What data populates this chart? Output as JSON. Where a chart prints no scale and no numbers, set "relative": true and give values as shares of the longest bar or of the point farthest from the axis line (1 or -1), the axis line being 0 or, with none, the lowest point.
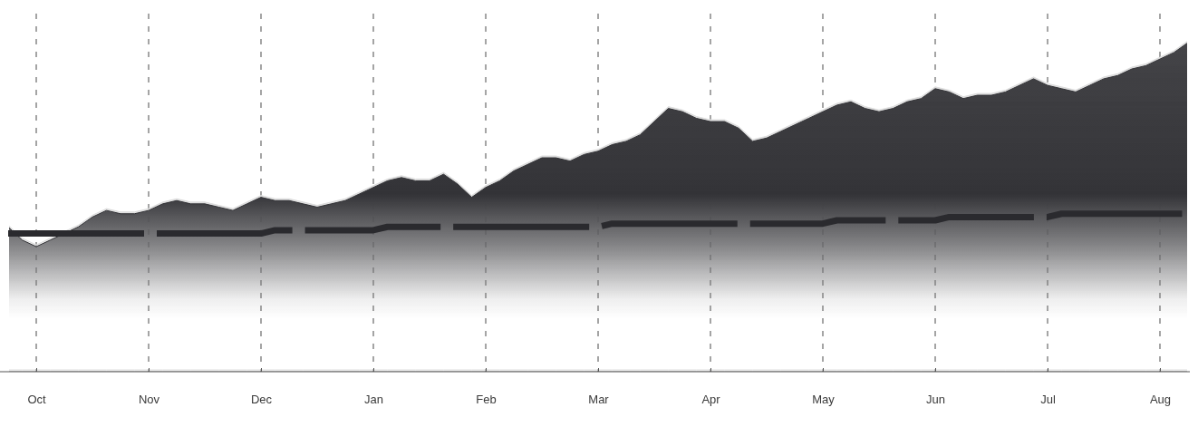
{
  "chart_data": {
    "type": "area",
    "relative": true,
    "grid": "x",
    "tick_labels": "x",
    "line_style": "dashed",
    "categories": [
      null,
      null,
      "Oct",
      null,
      null,
      null,
      null,
      null,
      null,
      null,
      "Nov",
      null,
      null,
      null,
      null,
      null,
      null,
      null,
      "Dec",
      null,
      null,
      null,
      null,
      null,
      null,
      null,
      "Jan",
      null,
      null,
      null,
      null,
      null,
      null,
      null,
      "Feb",
      null,
      null,
      null,
      null,
      null,
      null,
      null,
      "Mar",
      null,
      null,
      null,
      null,
      null,
      null,
      null,
      "Apr",
      null,
      null,
      null,
      null,
      null,
      null,
      null,
      "May",
      null,
      null,
      null,
      null,
      null,
      null,
      null,
      "Jun",
      null,
      null,
      null,
      null,
      null,
      null,
      null,
      "Jul",
      null,
      null,
      null,
      null,
      null,
      null,
      null,
      "Aug",
      null,
      null
    ],
    "series": [
      {
        "color": "#333337",
        "values": [
          0.44,
          0.4,
          0.38,
          0.4,
          0.42,
          0.44,
          0.47,
          0.49,
          0.48,
          0.48,
          0.49,
          0.51,
          0.52,
          0.51,
          0.51,
          0.5,
          0.49,
          0.51,
          0.53,
          0.52,
          0.52,
          0.51,
          0.5,
          0.51,
          0.52,
          0.54,
          0.56,
          0.58,
          0.59,
          0.58,
          0.58,
          0.6,
          0.57,
          0.53,
          0.56,
          0.58,
          0.61,
          0.63,
          0.65,
          0.65,
          0.64,
          0.66,
          0.67,
          0.69,
          0.7,
          0.72,
          0.76,
          0.8,
          0.79,
          0.77,
          0.76,
          0.76,
          0.74,
          0.7,
          0.71,
          0.73,
          0.75,
          0.77,
          0.79,
          0.81,
          0.82,
          0.8,
          0.79,
          0.8,
          0.82,
          0.83,
          0.86,
          0.85,
          0.83,
          0.84,
          0.84,
          0.85,
          0.87,
          0.89,
          0.87,
          0.86,
          0.85,
          0.87,
          0.89,
          0.9,
          0.92,
          0.93,
          0.95,
          0.97,
          1.0
        ]
      },
      {
        "type": "line",
        "color": "#2a2a2e",
        "values": [
          0.42,
          0.42,
          0.42,
          0.42,
          0.42,
          0.42,
          0.42,
          0.42,
          0.42,
          0.42,
          0.42,
          0.42,
          0.42,
          0.42,
          0.42,
          0.42,
          0.42,
          0.42,
          0.42,
          0.43,
          0.43,
          0.43,
          0.43,
          0.43,
          0.43,
          0.43,
          0.43,
          0.44,
          0.44,
          0.44,
          0.44,
          0.44,
          0.44,
          0.44,
          0.44,
          0.44,
          0.44,
          0.44,
          0.44,
          0.44,
          0.44,
          0.44,
          0.44,
          0.45,
          0.45,
          0.45,
          0.45,
          0.45,
          0.45,
          0.45,
          0.45,
          0.45,
          0.45,
          0.45,
          0.45,
          0.45,
          0.45,
          0.45,
          0.45,
          0.46,
          0.46,
          0.46,
          0.46,
          0.46,
          0.46,
          0.46,
          0.46,
          0.47,
          0.47,
          0.47,
          0.47,
          0.47,
          0.47,
          0.47,
          0.47,
          0.48,
          0.48,
          0.48,
          0.48,
          0.48,
          0.48,
          0.48,
          0.48,
          0.48,
          0.48
        ]
      }
    ]
  }
}
